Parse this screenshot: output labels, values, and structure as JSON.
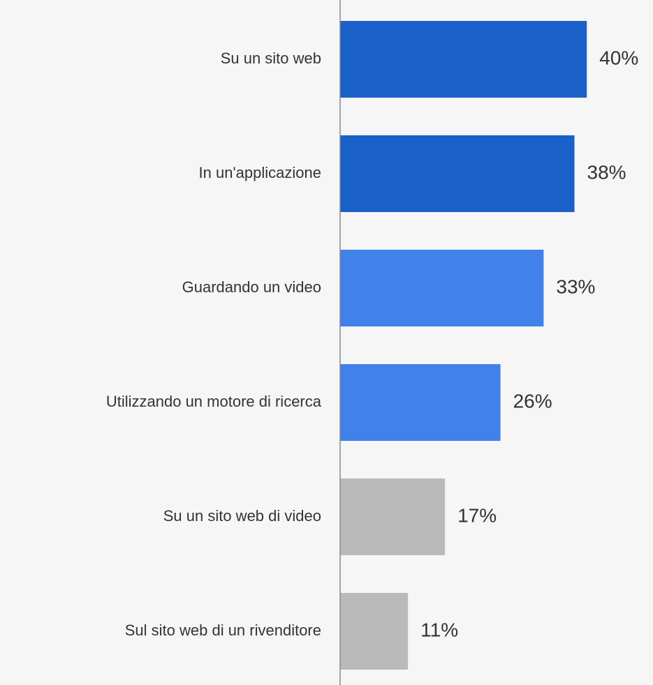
{
  "chart_data": {
    "type": "hbar",
    "categories": [
      "Su un sito web",
      "In un'applicazione",
      "Guardando un video",
      "Utilizzando un motore di ricerca",
      "Su un sito web di video",
      "Sul sito web di un rivenditore"
    ],
    "values": [
      40,
      38,
      33,
      26,
      17,
      11
    ],
    "value_labels": [
      "40%",
      "38%",
      "33%",
      "26%",
      "17%",
      "11%"
    ],
    "colors": [
      "#1a60c9",
      "#1a60c9",
      "#4181ea",
      "#4181ea",
      "#bababa",
      "#bababa"
    ],
    "xlim": [
      0,
      50
    ]
  }
}
